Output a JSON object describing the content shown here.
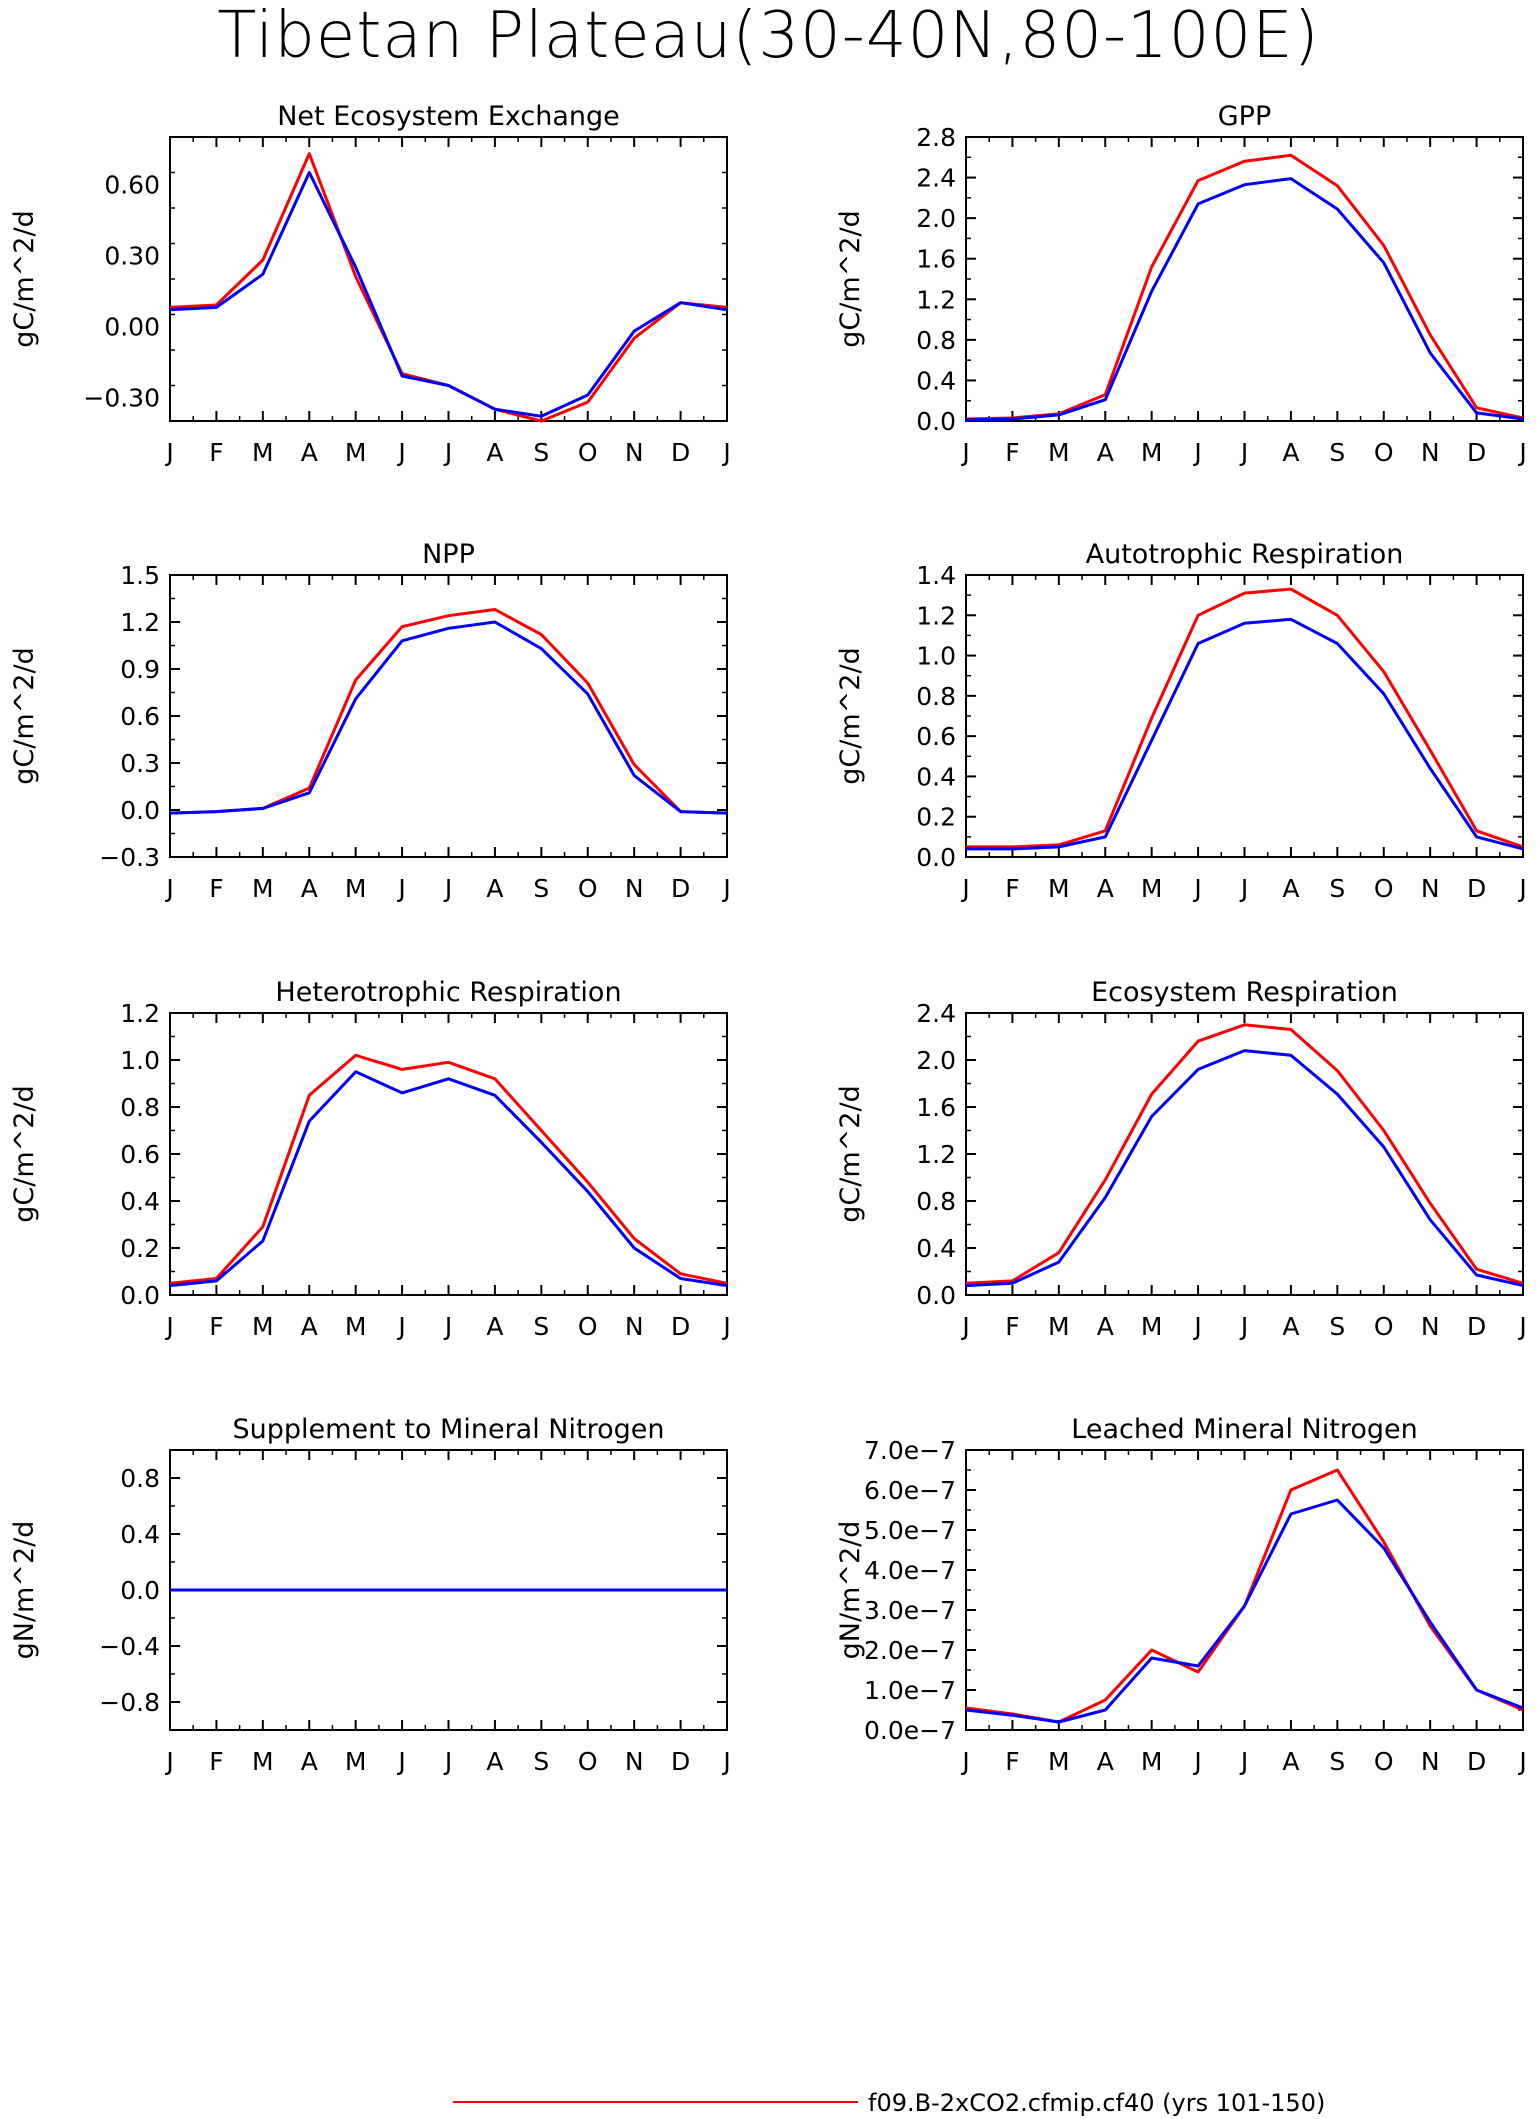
{
  "page": {
    "title": "Tibetan Plateau(30-40N,80-100E)"
  },
  "legend": {
    "text": "f09.B-2xCO2.cfmip.cf40 (yrs 101-150)",
    "color": "#ff0000"
  },
  "colors": {
    "red": "#ff0000",
    "blue": "#0000ff"
  },
  "chart_data": [
    {
      "type": "line",
      "title": "Net Ecosystem Exchange",
      "ylabel": "gC/m^2/d",
      "x": [
        "J",
        "F",
        "M",
        "A",
        "M",
        "J",
        "J",
        "A",
        "S",
        "O",
        "N",
        "D",
        "J"
      ],
      "ylim": [
        -0.4,
        0.8
      ],
      "yticks": [
        -0.3,
        0.0,
        0.3,
        0.6
      ],
      "ytick_labels": [
        "−0.30",
        "0.00",
        "0.30",
        "0.60"
      ],
      "series": [
        {
          "color": "#ff0000",
          "values": [
            0.08,
            0.09,
            0.28,
            0.73,
            0.21,
            -0.2,
            -0.25,
            -0.35,
            -0.4,
            -0.32,
            -0.05,
            0.1,
            0.08
          ]
        },
        {
          "color": "#0000ff",
          "values": [
            0.07,
            0.08,
            0.22,
            0.65,
            0.25,
            -0.21,
            -0.25,
            -0.35,
            -0.38,
            -0.29,
            -0.02,
            0.1,
            0.07
          ]
        }
      ]
    },
    {
      "type": "line",
      "title": "GPP",
      "ylabel": "gC/m^2/d",
      "x": [
        "J",
        "F",
        "M",
        "A",
        "M",
        "J",
        "J",
        "A",
        "S",
        "O",
        "N",
        "D",
        "J"
      ],
      "ylim": [
        0,
        2.8
      ],
      "yticks": [
        0,
        0.4,
        0.8,
        1.2,
        1.6,
        2.0,
        2.4,
        2.8
      ],
      "ytick_labels": [
        "0.0",
        "0.4",
        "0.8",
        "1.2",
        "1.6",
        "2.0",
        "2.4",
        "2.8"
      ],
      "series": [
        {
          "color": "#ff0000",
          "values": [
            0.02,
            0.03,
            0.07,
            0.26,
            1.52,
            2.37,
            2.56,
            2.62,
            2.32,
            1.73,
            0.85,
            0.13,
            0.03
          ]
        },
        {
          "color": "#0000ff",
          "values": [
            0.01,
            0.02,
            0.06,
            0.21,
            1.28,
            2.14,
            2.33,
            2.39,
            2.09,
            1.56,
            0.67,
            0.08,
            0.02
          ]
        }
      ]
    },
    {
      "type": "line",
      "title": "NPP",
      "ylabel": "gC/m^2/d",
      "x": [
        "J",
        "F",
        "M",
        "A",
        "M",
        "J",
        "J",
        "A",
        "S",
        "O",
        "N",
        "D",
        "J"
      ],
      "ylim": [
        -0.3,
        1.5
      ],
      "yticks": [
        -0.3,
        0,
        0.3,
        0.6,
        0.9,
        1.2,
        1.5
      ],
      "ytick_labels": [
        "−0.3",
        "0.0",
        "0.3",
        "0.6",
        "0.9",
        "1.2",
        "1.5"
      ],
      "series": [
        {
          "color": "#ff0000",
          "values": [
            -0.02,
            -0.01,
            0.01,
            0.14,
            0.83,
            1.17,
            1.24,
            1.28,
            1.12,
            0.81,
            0.29,
            -0.01,
            -0.02
          ]
        },
        {
          "color": "#0000ff",
          "values": [
            -0.02,
            -0.01,
            0.01,
            0.11,
            0.71,
            1.08,
            1.16,
            1.2,
            1.03,
            0.74,
            0.22,
            -0.01,
            -0.02
          ]
        }
      ]
    },
    {
      "type": "line",
      "title": "Autotrophic Respiration",
      "ylabel": "gC/m^2/d",
      "x": [
        "J",
        "F",
        "M",
        "A",
        "M",
        "J",
        "J",
        "A",
        "S",
        "O",
        "N",
        "D",
        "J"
      ],
      "ylim": [
        0,
        1.4
      ],
      "yticks": [
        0,
        0.2,
        0.4,
        0.6,
        0.8,
        1.0,
        1.2,
        1.4
      ],
      "ytick_labels": [
        "0.0",
        "0.2",
        "0.4",
        "0.6",
        "0.8",
        "1.0",
        "1.2",
        "1.4"
      ],
      "series": [
        {
          "color": "#ff0000",
          "values": [
            0.05,
            0.05,
            0.06,
            0.13,
            0.69,
            1.2,
            1.31,
            1.33,
            1.2,
            0.92,
            0.53,
            0.13,
            0.05
          ]
        },
        {
          "color": "#0000ff",
          "values": [
            0.04,
            0.04,
            0.05,
            0.1,
            0.58,
            1.06,
            1.16,
            1.18,
            1.06,
            0.81,
            0.44,
            0.1,
            0.04
          ]
        }
      ]
    },
    {
      "type": "line",
      "title": "Heterotrophic Respiration",
      "ylabel": "gC/m^2/d",
      "x": [
        "J",
        "F",
        "M",
        "A",
        "M",
        "J",
        "J",
        "A",
        "S",
        "O",
        "N",
        "D",
        "J"
      ],
      "ylim": [
        0,
        1.2
      ],
      "yticks": [
        0,
        0.2,
        0.4,
        0.6,
        0.8,
        1.0,
        1.2
      ],
      "ytick_labels": [
        "0.0",
        "0.2",
        "0.4",
        "0.6",
        "0.8",
        "1.0",
        "1.2"
      ],
      "series": [
        {
          "color": "#ff0000",
          "values": [
            0.05,
            0.07,
            0.29,
            0.85,
            1.02,
            0.96,
            0.99,
            0.92,
            0.7,
            0.48,
            0.24,
            0.09,
            0.05
          ]
        },
        {
          "color": "#0000ff",
          "values": [
            0.04,
            0.06,
            0.23,
            0.74,
            0.95,
            0.86,
            0.92,
            0.85,
            0.65,
            0.44,
            0.2,
            0.07,
            0.04
          ]
        }
      ]
    },
    {
      "type": "line",
      "title": "Ecosystem Respiration",
      "ylabel": "gC/m^2/d",
      "x": [
        "J",
        "F",
        "M",
        "A",
        "M",
        "J",
        "J",
        "A",
        "S",
        "O",
        "N",
        "D",
        "J"
      ],
      "ylim": [
        0,
        2.4
      ],
      "yticks": [
        0,
        0.4,
        0.8,
        1.2,
        1.6,
        2.0,
        2.4
      ],
      "ytick_labels": [
        "0.0",
        "0.4",
        "0.8",
        "1.2",
        "1.6",
        "2.0",
        "2.4"
      ],
      "series": [
        {
          "color": "#ff0000",
          "values": [
            0.1,
            0.12,
            0.36,
            0.98,
            1.71,
            2.16,
            2.3,
            2.26,
            1.91,
            1.4,
            0.78,
            0.22,
            0.1
          ]
        },
        {
          "color": "#0000ff",
          "values": [
            0.08,
            0.1,
            0.28,
            0.83,
            1.52,
            1.92,
            2.08,
            2.04,
            1.71,
            1.26,
            0.64,
            0.17,
            0.08
          ]
        }
      ]
    },
    {
      "type": "line",
      "title": "Supplement to Mineral Nitrogen",
      "ylabel": "gN/m^2/d",
      "x": [
        "J",
        "F",
        "M",
        "A",
        "M",
        "J",
        "J",
        "A",
        "S",
        "O",
        "N",
        "D",
        "J"
      ],
      "ylim": [
        -1.0,
        1.0
      ],
      "yticks": [
        -0.8,
        -0.4,
        0,
        0.4,
        0.8
      ],
      "ytick_labels": [
        "−0.8",
        "−0.4",
        "0.0",
        "0.4",
        "0.8"
      ],
      "series": [
        {
          "color": "#ff0000",
          "values": [
            0,
            0,
            0,
            0,
            0,
            0,
            0,
            0,
            0,
            0,
            0,
            0,
            0
          ]
        },
        {
          "color": "#0000ff",
          "values": [
            0,
            0,
            0,
            0,
            0,
            0,
            0,
            0,
            0,
            0,
            0,
            0,
            0
          ]
        }
      ]
    },
    {
      "type": "line",
      "title": "Leached Mineral Nitrogen",
      "ylabel": "gN/m^2/d",
      "x": [
        "J",
        "F",
        "M",
        "A",
        "M",
        "J",
        "J",
        "A",
        "S",
        "O",
        "N",
        "D",
        "J"
      ],
      "ylim": [
        0,
        7e-07
      ],
      "yticks": [
        0,
        1e-07,
        2e-07,
        3e-07,
        4e-07,
        5e-07,
        6e-07,
        7e-07
      ],
      "ytick_labels": [
        "0.0e−7",
        "1.0e−7",
        "2.0e−7",
        "3.0e−7",
        "4.0e−7",
        "5.0e−7",
        "6.0e−7",
        "7.0e−7"
      ],
      "series": [
        {
          "color": "#ff0000",
          "values": [
            5.5e-08,
            4e-08,
            2e-08,
            7.5e-08,
            2e-07,
            1.45e-07,
            3.1e-07,
            6e-07,
            6.5e-07,
            4.7e-07,
            2.6e-07,
            1e-07,
            5e-08
          ]
        },
        {
          "color": "#0000ff",
          "values": [
            5e-08,
            3.7e-08,
            2e-08,
            5e-08,
            1.8e-07,
            1.6e-07,
            3.1e-07,
            5.4e-07,
            5.75e-07,
            4.55e-07,
            2.7e-07,
            1e-07,
            5.5e-08
          ]
        }
      ]
    }
  ]
}
